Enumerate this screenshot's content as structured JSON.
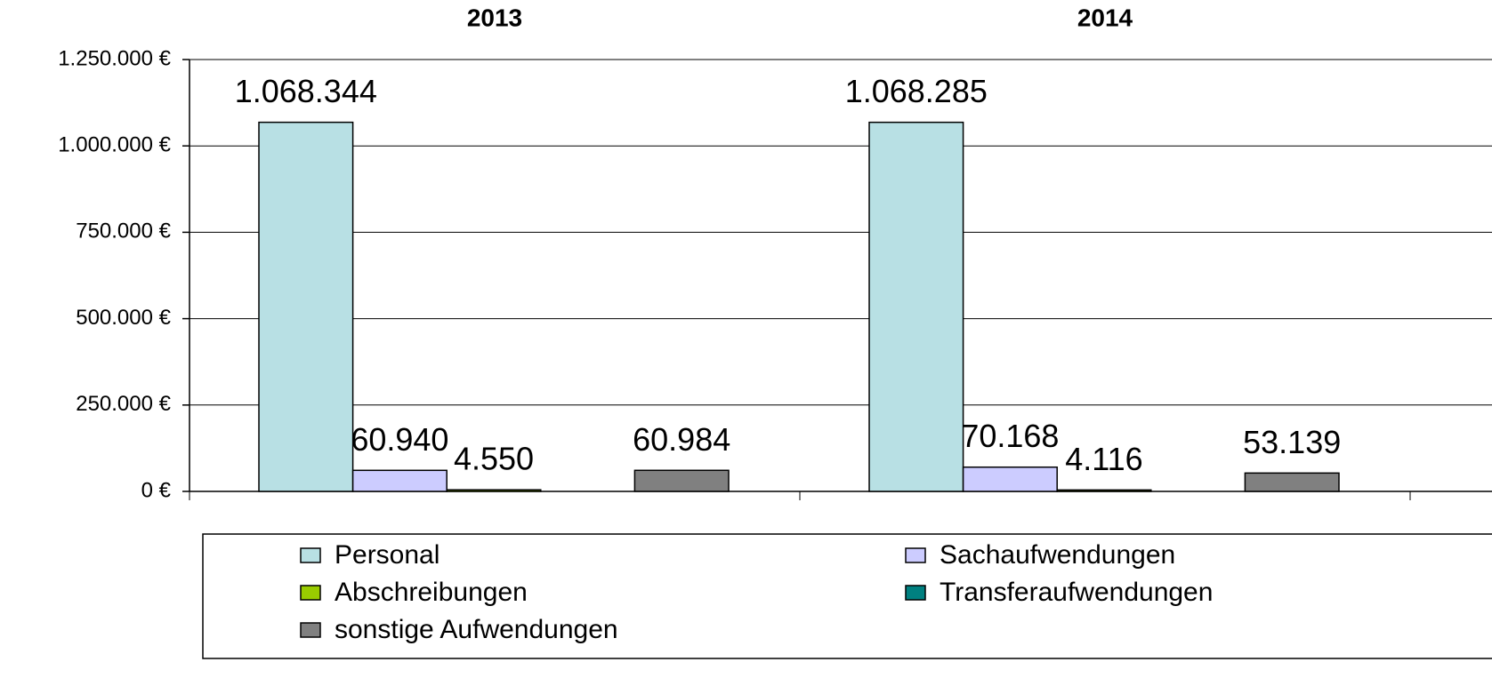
{
  "chart_data": {
    "type": "bar",
    "categories": [
      "2013",
      "2014"
    ],
    "series": [
      {
        "name": "Personal",
        "color": "#b8e0e4",
        "values": [
          1068344,
          1068285
        ],
        "value_labels": [
          "1.068.344",
          "1.068.285"
        ]
      },
      {
        "name": "Sachaufwendungen",
        "color": "#ccccff",
        "values": [
          60940,
          70168
        ],
        "value_labels": [
          "60.940",
          "70.168"
        ]
      },
      {
        "name": "Abschreibungen",
        "color": "#99cc00",
        "values": [
          4550,
          4116
        ],
        "value_labels": [
          "4.550",
          "4.116"
        ]
      },
      {
        "name": "Transferaufwendungen",
        "color": "#008080",
        "values": [
          null,
          null
        ],
        "value_labels": [
          null,
          null
        ]
      },
      {
        "name": "sonstige Aufwendungen",
        "color": "#808080",
        "values": [
          60984,
          53139
        ],
        "value_labels": [
          "60.984",
          "53.139"
        ]
      }
    ],
    "ylim": [
      0,
      1250000
    ],
    "yticks": [
      {
        "value": 0,
        "label": "0 €"
      },
      {
        "value": 250000,
        "label": "250.000 €"
      },
      {
        "value": 500000,
        "label": "500.000 €"
      },
      {
        "value": 750000,
        "label": "750.000 €"
      },
      {
        "value": 1000000,
        "label": "1.000.000 €"
      },
      {
        "value": 1250000,
        "label": "1.250.000 €"
      }
    ],
    "grid": true
  }
}
